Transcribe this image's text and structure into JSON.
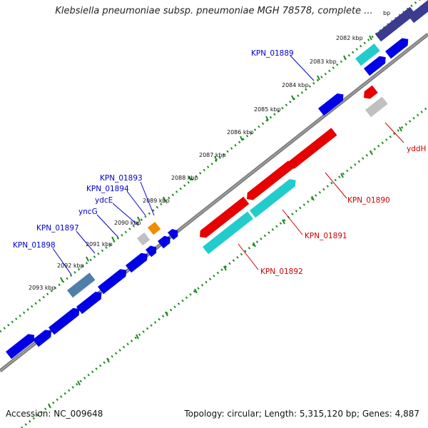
{
  "title": "Klebsiella pneumoniae subsp. pneumoniae MGH 78578, complete ...",
  "ticks": [
    "2082 kbp",
    "2083 kbp",
    "2084 kbp",
    "2085 kbp",
    "2086 kbp",
    "2087 kbp",
    "2088 kbp",
    "2089 kbp",
    "2090 kbp",
    "2091 kbp",
    "2092 kbp",
    "2093 kbp"
  ],
  "partial_tick": "bp",
  "gene_labels_forward": [
    "KPN_01889",
    "KPN_01893",
    "KPN_01894",
    "ydcE",
    "yncG",
    "KPN_01897",
    "KPN_01898"
  ],
  "gene_labels_reverse": [
    "yddH",
    "KPN_01890",
    "KPN_01891",
    "KPN_01892"
  ],
  "colors": {
    "forward_gene": "#0000e6",
    "reverse_gene": "#e60000",
    "cyan_gene": "#22cccc",
    "navy_gene": "#3b3b8f",
    "steel_gene": "#4f7fa8",
    "orange_gene": "#f08c00",
    "grey_gene": "#bbbbbb",
    "forward_label": "#0000cc",
    "reverse_label": "#cc0000",
    "tick_dots": "#228b22",
    "backbone": "#808080"
  },
  "footer": {
    "accession": "Accession: NC_009648",
    "topology": "Topology: circular; Length: 5,315,120 bp; Genes: 4,887"
  }
}
